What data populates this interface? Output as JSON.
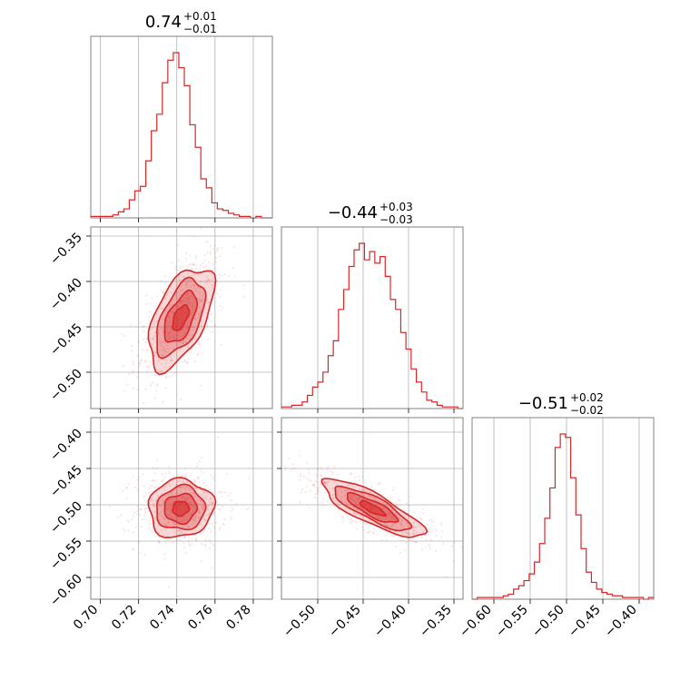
{
  "colors": {
    "main": "#d62728",
    "grid": "#b0b0b0",
    "frame": "#808080"
  },
  "chart_data": [
    {
      "type": "corner",
      "params": [
        {
          "title": {
            "median": "0.74",
            "plus": "+0.01",
            "minus": "−0.01"
          },
          "range": [
            0.695,
            0.79
          ],
          "ticks": [
            0.7,
            0.72,
            0.74,
            0.76,
            0.78
          ],
          "tick_labels": [
            "0.70",
            "0.72",
            "0.74",
            "0.76",
            "0.78"
          ],
          "median": 0.742,
          "sigma": 0.0085,
          "hist_counts": [
            1,
            1,
            1,
            1,
            2,
            4,
            6,
            12,
            18,
            21,
            38,
            58,
            69,
            90,
            105,
            110,
            100,
            88,
            62,
            47,
            26,
            20,
            10,
            6,
            5,
            3,
            2,
            1,
            1,
            0,
            1,
            0,
            0
          ]
        },
        {
          "title": {
            "median": "−0.44",
            "plus": "+0.03",
            "minus": "−0.03"
          },
          "range": [
            -0.54,
            -0.34
          ],
          "ticks": [
            -0.5,
            -0.45,
            -0.4,
            -0.35
          ],
          "tick_labels": [
            "−0.50",
            "−0.45",
            "−0.40",
            "−0.35"
          ],
          "median": -0.44,
          "sigma": 0.028,
          "hist_counts": [
            1,
            1,
            2,
            2,
            4,
            8,
            13,
            16,
            22,
            32,
            41,
            60,
            72,
            86,
            96,
            100,
            90,
            95,
            88,
            92,
            80,
            66,
            60,
            46,
            36,
            24,
            16,
            10,
            5,
            4,
            2,
            1,
            1,
            1,
            0
          ]
        },
        {
          "title": {
            "median": "−0.51",
            "plus": "+0.02",
            "minus": "−0.02"
          },
          "range": [
            -0.63,
            -0.38
          ],
          "ticks": [
            -0.6,
            -0.55,
            -0.5,
            -0.45,
            -0.4
          ],
          "tick_labels": [
            "−0.60",
            "−0.55",
            "−0.50",
            "−0.45",
            "−0.40"
          ],
          "median": -0.505,
          "sigma": 0.02,
          "hist_counts": [
            0,
            1,
            1,
            1,
            1,
            1,
            2,
            3,
            6,
            8,
            11,
            15,
            22,
            33,
            48,
            66,
            90,
            98,
            96,
            72,
            50,
            30,
            16,
            10,
            6,
            4,
            3,
            2,
            2,
            1,
            1,
            1,
            1,
            0,
            1
          ]
        }
      ],
      "correlations": {
        "1-0": 0.55,
        "2-0": 0.05,
        "2-1": -0.82
      },
      "contour_sigmas": [
        0.5,
        1.0,
        1.5,
        2.0
      ],
      "xlabel": "",
      "ylabel": ""
    }
  ]
}
